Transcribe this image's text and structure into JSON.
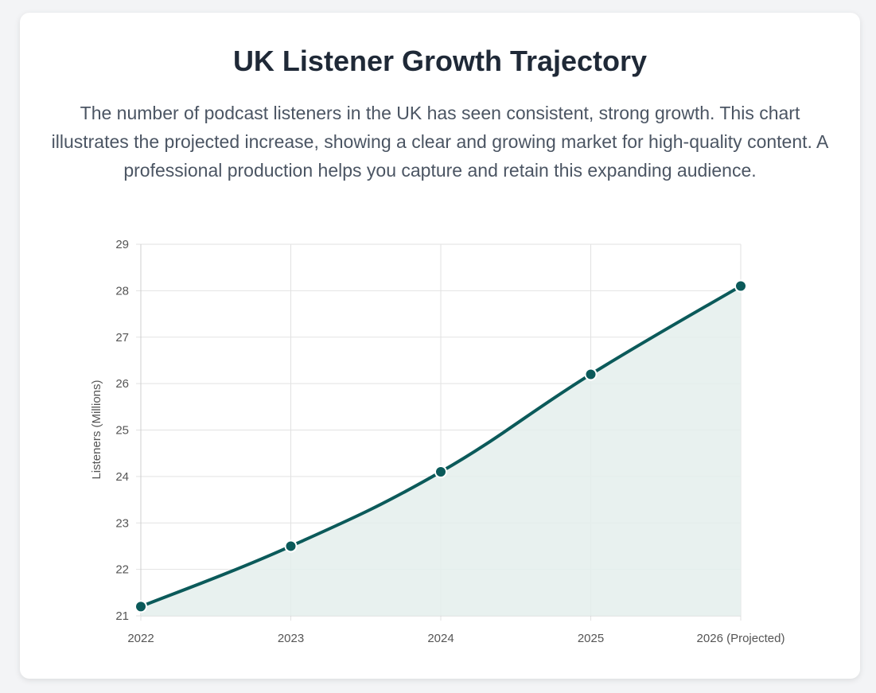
{
  "header": {
    "title": "UK Listener Growth Trajectory",
    "description": "The number of podcast listeners in the UK has seen consistent, strong growth. This chart illustrates the projected increase, showing a clear and growing market for high-quality content. A professional production helps you capture and retain this expanding audience."
  },
  "chart_data": {
    "type": "line",
    "title": "",
    "xlabel": "",
    "ylabel": "Listeners (Millions)",
    "categories": [
      "2022",
      "2023",
      "2024",
      "2025",
      "2026 (Projected)"
    ],
    "series": [
      {
        "values": [
          21.2,
          22.5,
          24.1,
          26.2,
          28.1
        ]
      }
    ],
    "ylim": [
      21,
      29
    ],
    "yticks": [
      21,
      22,
      23,
      24,
      25,
      26,
      27,
      28,
      29
    ],
    "grid": true,
    "area_fill": true,
    "colors": {
      "line": "#0b5a5a",
      "fill": "#e4eeec",
      "grid": "#e2e2e2",
      "point": "#0b5a5a",
      "point_border": "#ffffff"
    }
  }
}
